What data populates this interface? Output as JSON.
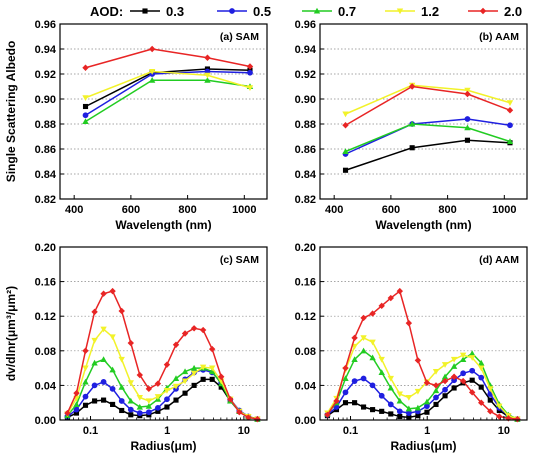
{
  "legend": {
    "title": "AOD:",
    "entries": [
      {
        "label": "0.3",
        "color": "#000000",
        "marker": "square"
      },
      {
        "label": "0.5",
        "color": "#1f1fe0",
        "marker": "circle"
      },
      {
        "label": "0.7",
        "color": "#22cc22",
        "marker": "triangle"
      },
      {
        "label": "1.2",
        "color": "#f2f22a",
        "marker": "triangle-down"
      },
      {
        "label": "2.0",
        "color": "#e82525",
        "marker": "diamond"
      }
    ]
  },
  "chart_data": [
    {
      "panel": "(a) SAM",
      "type": "line",
      "xlabel": "Wavelength (nm)",
      "ylabel": "Single Scattering Albedo",
      "xlim": [
        350,
        1080
      ],
      "ylim": [
        0.82,
        0.96
      ],
      "xticks": [
        400,
        600,
        800,
        1000
      ],
      "yticks": [
        0.82,
        0.84,
        0.86,
        0.88,
        0.9,
        0.92,
        0.94,
        0.96
      ],
      "xtick_labels": [
        "400",
        "600",
        "800",
        "1000"
      ],
      "ytick_labels": [
        "0.82",
        "0.84",
        "0.86",
        "0.88",
        "0.90",
        "0.92",
        "0.94",
        "0.96"
      ],
      "grid": "horizontal dotted",
      "x": [
        440,
        675,
        870,
        1020
      ],
      "series": [
        {
          "name": "0.3",
          "values": [
            0.894,
            0.921,
            0.924,
            0.923
          ]
        },
        {
          "name": "0.5",
          "values": [
            0.887,
            0.92,
            0.922,
            0.921
          ]
        },
        {
          "name": "0.7",
          "values": [
            0.882,
            0.915,
            0.915,
            0.91
          ]
        },
        {
          "name": "1.2",
          "values": [
            0.901,
            0.922,
            0.919,
            0.909
          ]
        },
        {
          "name": "2.0",
          "values": [
            0.925,
            0.94,
            0.933,
            0.926
          ]
        }
      ]
    },
    {
      "panel": "(b) AAM",
      "type": "line",
      "xlabel": "Wavelength (nm)",
      "ylabel": "",
      "xlim": [
        350,
        1080
      ],
      "ylim": [
        0.82,
        0.96
      ],
      "xticks": [
        400,
        600,
        800,
        1000
      ],
      "yticks": [
        0.82,
        0.84,
        0.86,
        0.88,
        0.9,
        0.92,
        0.94,
        0.96
      ],
      "xtick_labels": [
        "400",
        "600",
        "800",
        "1000"
      ],
      "ytick_labels": [
        "0.82",
        "0.84",
        "0.86",
        "0.88",
        "0.90",
        "0.92",
        "0.94",
        "0.96"
      ],
      "grid": "horizontal dotted",
      "x": [
        440,
        675,
        870,
        1020
      ],
      "series": [
        {
          "name": "0.3",
          "values": [
            0.843,
            0.861,
            0.867,
            0.865
          ]
        },
        {
          "name": "0.5",
          "values": [
            0.856,
            0.88,
            0.884,
            0.879
          ]
        },
        {
          "name": "0.7",
          "values": [
            0.858,
            0.88,
            0.877,
            0.866
          ]
        },
        {
          "name": "1.2",
          "values": [
            0.888,
            0.911,
            0.907,
            0.897
          ]
        },
        {
          "name": "2.0",
          "values": [
            0.879,
            0.91,
            0.904,
            0.891
          ]
        }
      ]
    },
    {
      "panel": "(c) SAM",
      "type": "line",
      "xlabel": "Radius(μm)",
      "ylabel": "dv/dlnr(μm³/μm²)",
      "xscale": "log",
      "xlim": [
        0.04,
        20
      ],
      "ylim": [
        0,
        0.2
      ],
      "xticks": [
        0.1,
        1,
        10
      ],
      "yticks": [
        0,
        0.04,
        0.08,
        0.12,
        0.16,
        0.2
      ],
      "xtick_labels": [
        "0.1",
        "1",
        "10"
      ],
      "ytick_labels": [
        "0.00",
        "0.04",
        "0.08",
        "0.12",
        "0.16",
        "0.20"
      ],
      "grid": "horizontal dotted",
      "x": [
        0.05,
        0.0656,
        0.086,
        0.113,
        0.148,
        0.194,
        0.255,
        0.335,
        0.439,
        0.576,
        0.756,
        0.992,
        1.302,
        1.708,
        2.241,
        2.94,
        3.857,
        5.06,
        6.641,
        8.713,
        11.432,
        15.0
      ],
      "series": [
        {
          "name": "0.3",
          "values": [
            0.003,
            0.008,
            0.017,
            0.022,
            0.023,
            0.018,
            0.011,
            0.006,
            0.005,
            0.006,
            0.01,
            0.015,
            0.023,
            0.031,
            0.04,
            0.047,
            0.047,
            0.038,
            0.022,
            0.01,
            0.004,
            0.001
          ]
        },
        {
          "name": "0.5",
          "values": [
            0.004,
            0.012,
            0.027,
            0.04,
            0.044,
            0.036,
            0.022,
            0.012,
            0.008,
            0.009,
            0.014,
            0.024,
            0.036,
            0.047,
            0.055,
            0.058,
            0.055,
            0.043,
            0.024,
            0.011,
            0.004,
            0.001
          ]
        },
        {
          "name": "0.7",
          "values": [
            0.005,
            0.018,
            0.044,
            0.066,
            0.07,
            0.058,
            0.038,
            0.022,
            0.015,
            0.016,
            0.024,
            0.037,
            0.048,
            0.056,
            0.06,
            0.06,
            0.056,
            0.042,
            0.022,
            0.01,
            0.004,
            0.001
          ]
        },
        {
          "name": "1.2",
          "values": [
            0.007,
            0.025,
            0.06,
            0.092,
            0.105,
            0.096,
            0.07,
            0.043,
            0.026,
            0.022,
            0.027,
            0.034,
            0.039,
            0.045,
            0.054,
            0.061,
            0.06,
            0.045,
            0.024,
            0.01,
            0.004,
            0.001
          ]
        },
        {
          "name": "2.0",
          "values": [
            0.008,
            0.031,
            0.08,
            0.125,
            0.146,
            0.149,
            0.126,
            0.089,
            0.052,
            0.036,
            0.042,
            0.064,
            0.087,
            0.1,
            0.106,
            0.104,
            0.082,
            0.05,
            0.024,
            0.009,
            0.003,
            0.001
          ]
        }
      ]
    },
    {
      "panel": "(d) AAM",
      "type": "line",
      "xlabel": "Radius(μm)",
      "ylabel": "",
      "xscale": "log",
      "xlim": [
        0.04,
        20
      ],
      "ylim": [
        0,
        0.2
      ],
      "xticks": [
        0.1,
        1,
        10
      ],
      "yticks": [
        0,
        0.04,
        0.08,
        0.12,
        0.16,
        0.2
      ],
      "xtick_labels": [
        "0.1",
        "1",
        "10"
      ],
      "ytick_labels": [
        "0.00",
        "0.04",
        "0.08",
        "0.12",
        "0.16",
        "0.20"
      ],
      "grid": "horizontal dotted",
      "x": [
        0.05,
        0.0656,
        0.086,
        0.113,
        0.148,
        0.194,
        0.255,
        0.335,
        0.439,
        0.576,
        0.756,
        0.992,
        1.302,
        1.708,
        2.241,
        2.94,
        3.857,
        5.06,
        6.641,
        8.713,
        11.432,
        15.0
      ],
      "series": [
        {
          "name": "0.3",
          "values": [
            0.005,
            0.012,
            0.02,
            0.02,
            0.015,
            0.012,
            0.01,
            0.007,
            0.004,
            0.003,
            0.005,
            0.009,
            0.018,
            0.028,
            0.037,
            0.043,
            0.046,
            0.038,
            0.023,
            0.011,
            0.004,
            0.001
          ]
        },
        {
          "name": "0.5",
          "values": [
            0.006,
            0.015,
            0.032,
            0.045,
            0.048,
            0.04,
            0.028,
            0.018,
            0.01,
            0.008,
            0.01,
            0.016,
            0.026,
            0.035,
            0.046,
            0.054,
            0.057,
            0.049,
            0.03,
            0.014,
            0.005,
            0.001
          ]
        },
        {
          "name": "0.7",
          "values": [
            0.007,
            0.02,
            0.048,
            0.07,
            0.08,
            0.072,
            0.055,
            0.037,
            0.022,
            0.013,
            0.014,
            0.021,
            0.034,
            0.05,
            0.062,
            0.07,
            0.077,
            0.066,
            0.04,
            0.018,
            0.006,
            0.001
          ]
        },
        {
          "name": "1.2",
          "values": [
            0.008,
            0.025,
            0.058,
            0.085,
            0.095,
            0.09,
            0.07,
            0.048,
            0.03,
            0.026,
            0.033,
            0.044,
            0.056,
            0.064,
            0.07,
            0.075,
            0.072,
            0.06,
            0.036,
            0.016,
            0.005,
            0.001
          ]
        },
        {
          "name": "2.0",
          "values": [
            0.006,
            0.022,
            0.06,
            0.095,
            0.118,
            0.123,
            0.132,
            0.141,
            0.149,
            0.112,
            0.069,
            0.043,
            0.04,
            0.045,
            0.05,
            0.045,
            0.032,
            0.02,
            0.01,
            0.004,
            0.002,
            0.001
          ]
        }
      ]
    }
  ]
}
